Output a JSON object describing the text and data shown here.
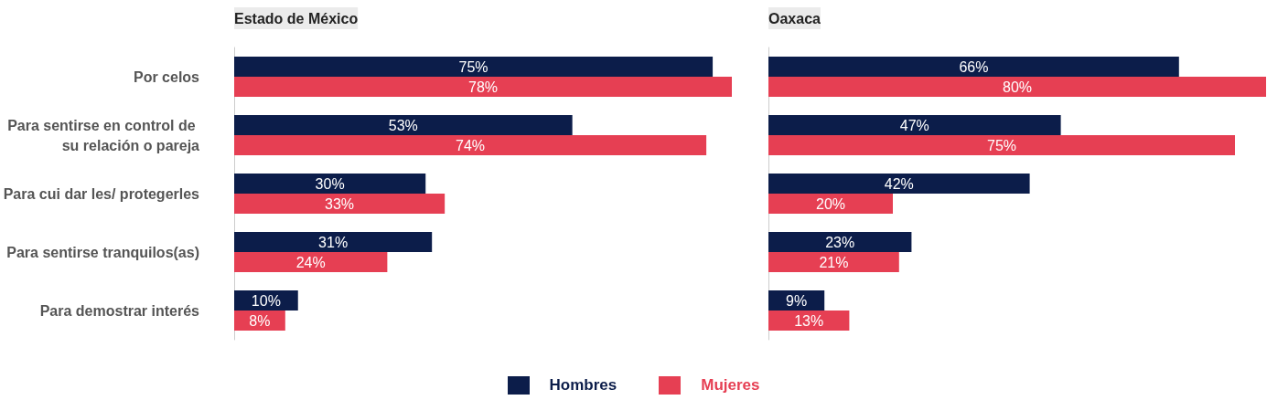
{
  "chart_data": [
    {
      "type": "bar",
      "orientation": "horizontal",
      "title": "Estado de México",
      "categories": [
        "Por celos",
        "Para sentirse en control de su relación o pareja",
        "Para cui dar les/ protegerles",
        "Para sentirse tranquilos(as)",
        "Para demostrar interés"
      ],
      "series": [
        {
          "name": "Hombres",
          "color": "#0c1d4a",
          "values": [
            75,
            53,
            30,
            31,
            10
          ],
          "value_labels": [
            "75%",
            "53%",
            "30%",
            "31%",
            "10%"
          ]
        },
        {
          "name": "Mujeres",
          "color": "#e63f53",
          "values": [
            78,
            74,
            33,
            24,
            8
          ],
          "value_labels": [
            "78%",
            "74%",
            "33%",
            "24%",
            "8%"
          ]
        }
      ],
      "tick_labels": "y",
      "legend": "bottom",
      "grid": false
    },
    {
      "type": "bar",
      "orientation": "horizontal",
      "title": "Oaxaca",
      "categories": [
        "Por celos",
        "Para sentirse en control de su relación o pareja",
        "Para cui dar les/ protegerles",
        "Para sentirse tranquilos(as)",
        "Para demostrar interés"
      ],
      "series": [
        {
          "name": "Hombres",
          "color": "#0c1d4a",
          "values": [
            66,
            47,
            42,
            23,
            9
          ],
          "value_labels": [
            "66%",
            "47%",
            "42%",
            "23%",
            "9%"
          ]
        },
        {
          "name": "Mujeres",
          "color": "#e63f53",
          "values": [
            80,
            75,
            20,
            21,
            13
          ],
          "value_labels": [
            "80%",
            "75%",
            "20%",
            "21%",
            "13%"
          ]
        }
      ],
      "tick_labels": false,
      "legend": "bottom",
      "grid": false
    }
  ]
}
